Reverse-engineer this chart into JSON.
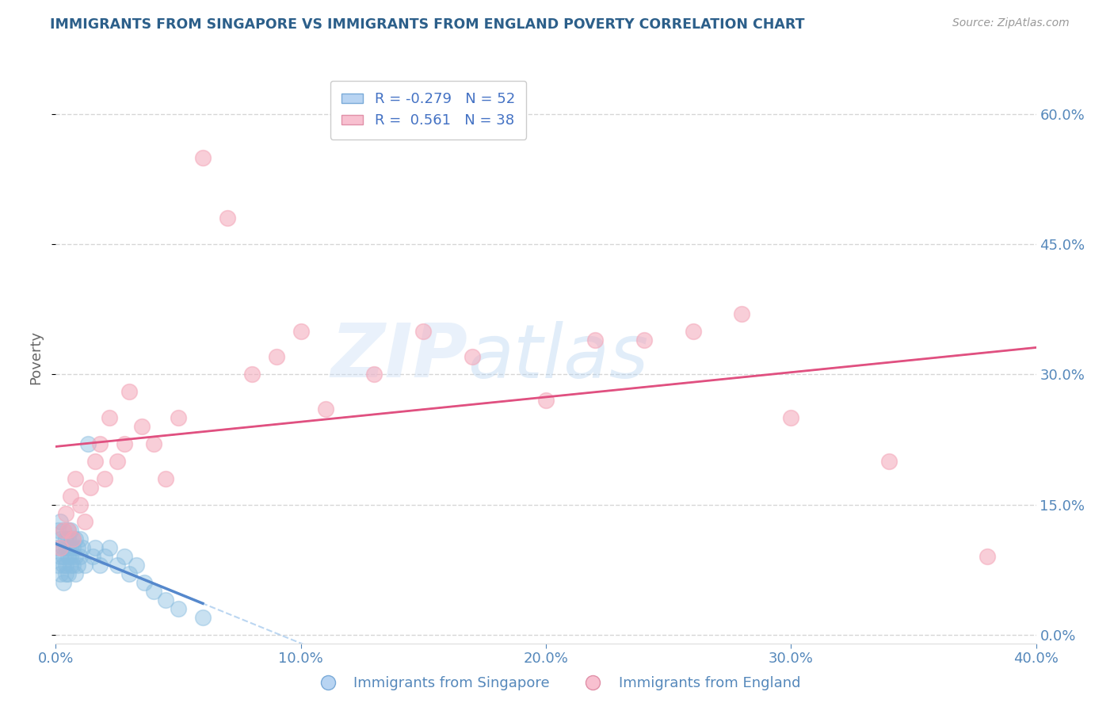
{
  "title": "IMMIGRANTS FROM SINGAPORE VS IMMIGRANTS FROM ENGLAND POVERTY CORRELATION CHART",
  "source": "Source: ZipAtlas.com",
  "ylabel": "Poverty",
  "xlim": [
    0.0,
    0.4
  ],
  "ylim": [
    -0.01,
    0.65
  ],
  "yticks": [
    0.0,
    0.15,
    0.3,
    0.45,
    0.6
  ],
  "xticks": [
    0.0,
    0.1,
    0.2,
    0.3,
    0.4
  ],
  "singapore_color": "#89bde0",
  "england_color": "#f4a7b9",
  "singapore_R": -0.279,
  "singapore_N": 52,
  "england_R": 0.561,
  "england_N": 38,
  "sg_line_color": "#5588cc",
  "en_line_color": "#e05080",
  "sg_line_dash_color": "#aaccee",
  "en_line_dash_color": "#f0a0c0",
  "singapore_x": [
    0.001,
    0.001,
    0.001,
    0.002,
    0.002,
    0.002,
    0.002,
    0.003,
    0.003,
    0.003,
    0.003,
    0.003,
    0.004,
    0.004,
    0.004,
    0.004,
    0.005,
    0.005,
    0.005,
    0.005,
    0.005,
    0.006,
    0.006,
    0.006,
    0.006,
    0.007,
    0.007,
    0.007,
    0.008,
    0.008,
    0.008,
    0.009,
    0.009,
    0.01,
    0.01,
    0.011,
    0.012,
    0.013,
    0.015,
    0.016,
    0.018,
    0.02,
    0.022,
    0.025,
    0.028,
    0.03,
    0.033,
    0.036,
    0.04,
    0.045,
    0.05,
    0.06
  ],
  "singapore_y": [
    0.1,
    0.12,
    0.08,
    0.11,
    0.09,
    0.13,
    0.07,
    0.1,
    0.08,
    0.12,
    0.06,
    0.09,
    0.11,
    0.07,
    0.1,
    0.08,
    0.09,
    0.12,
    0.07,
    0.1,
    0.11,
    0.08,
    0.1,
    0.12,
    0.09,
    0.08,
    0.11,
    0.1,
    0.09,
    0.11,
    0.07,
    0.1,
    0.08,
    0.09,
    0.11,
    0.1,
    0.08,
    0.22,
    0.09,
    0.1,
    0.08,
    0.09,
    0.1,
    0.08,
    0.09,
    0.07,
    0.08,
    0.06,
    0.05,
    0.04,
    0.03,
    0.02
  ],
  "england_x": [
    0.002,
    0.003,
    0.004,
    0.005,
    0.006,
    0.007,
    0.008,
    0.01,
    0.012,
    0.014,
    0.016,
    0.018,
    0.02,
    0.022,
    0.025,
    0.028,
    0.03,
    0.035,
    0.04,
    0.045,
    0.05,
    0.06,
    0.07,
    0.08,
    0.09,
    0.1,
    0.11,
    0.13,
    0.15,
    0.17,
    0.2,
    0.22,
    0.24,
    0.26,
    0.28,
    0.3,
    0.34,
    0.38
  ],
  "england_y": [
    0.1,
    0.12,
    0.14,
    0.12,
    0.16,
    0.11,
    0.18,
    0.15,
    0.13,
    0.17,
    0.2,
    0.22,
    0.18,
    0.25,
    0.2,
    0.22,
    0.28,
    0.24,
    0.22,
    0.18,
    0.25,
    0.55,
    0.48,
    0.3,
    0.32,
    0.35,
    0.26,
    0.3,
    0.35,
    0.32,
    0.27,
    0.34,
    0.34,
    0.35,
    0.37,
    0.25,
    0.2,
    0.09
  ],
  "watermark_zip": "ZIP",
  "watermark_atlas": "atlas",
  "background_color": "#ffffff",
  "grid_color": "#cccccc",
  "title_color": "#2c5f8a",
  "source_color": "#999999",
  "legend_label_color": "#4472c4",
  "axis_tick_color": "#5588bb"
}
